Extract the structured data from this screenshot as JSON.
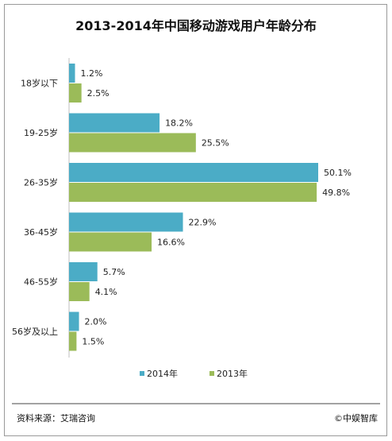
{
  "chart_data": {
    "type": "bar",
    "orientation": "horizontal",
    "title": "2013-2014年中国移动游戏用户年龄分布",
    "categories": [
      "18岁以下",
      "19-25岁",
      "26-35岁",
      "36-45岁",
      "46-55岁",
      "56岁及以上"
    ],
    "series": [
      {
        "name": "2014年",
        "color": "#4bacc6",
        "values": [
          1.2,
          18.2,
          50.1,
          22.9,
          5.7,
          2.0
        ],
        "labels": [
          "1.2%",
          "18.2%",
          "50.1%",
          "22.9%",
          "5.7%",
          "2.0%"
        ]
      },
      {
        "name": "2013年",
        "color": "#9bbb59",
        "values": [
          2.5,
          25.5,
          49.8,
          16.6,
          4.1,
          1.5
        ],
        "labels": [
          "2.5%",
          "25.5%",
          "49.8%",
          "16.6%",
          "4.1%",
          "1.5%"
        ]
      }
    ],
    "xlim": [
      0,
      50.1
    ],
    "grid": false,
    "legend_position": "bottom"
  },
  "footer": {
    "source": "资料来源：艾瑞咨询",
    "brand": "©中娱智库"
  }
}
